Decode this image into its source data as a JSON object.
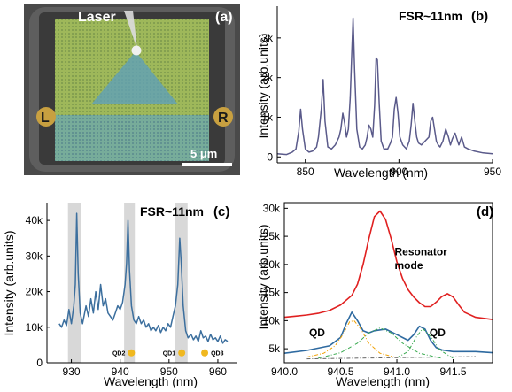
{
  "colors": {
    "spectrum": "#5a5a8a",
    "spectrum_c": "#3c6f9e",
    "resonator": "#e02020",
    "qd_fit": "#2e6aa0",
    "qd_orange": "#f0a000",
    "qd_green": "#3aaa50",
    "band": "#d8d8d8",
    "dot": "#f0b820"
  },
  "panel_a": {
    "label": "(a)",
    "laser_label": "Laser",
    "contact_left": "L",
    "contact_right": "R",
    "scalebar_label": "5 μm"
  },
  "chart_data": [
    {
      "panel": "b",
      "type": "line",
      "annotation": "FSR~11nm",
      "label": "(b)",
      "xlabel": "Wavelength (nm)",
      "ylabel": "Intensity (arb.units)",
      "xlim": [
        835,
        950
      ],
      "ylim": [
        -150,
        3800
      ],
      "xticks": [
        850,
        900,
        950
      ],
      "yticks": [
        0,
        1000,
        2000,
        3000
      ],
      "yticklabels": [
        "0",
        "1k",
        "2k",
        "3k"
      ],
      "series": [
        {
          "x": [
            835,
            840,
            843,
            845,
            846.5,
            847.5,
            848.5,
            850,
            852,
            854,
            856,
            857,
            858.5,
            859.5,
            860.5,
            862,
            864,
            866,
            868,
            869,
            870,
            871,
            872,
            873,
            874,
            874.8,
            875.5,
            876.3,
            877.5,
            879,
            880.5,
            882,
            883,
            884,
            885,
            886,
            887,
            887.8,
            888.5,
            889.5,
            890.5,
            892,
            894,
            895.5,
            896.5,
            897.5,
            898.5,
            899.5,
            900.5,
            902,
            904,
            905.5,
            906.5,
            907.5,
            908.5,
            909.5,
            910.5,
            912,
            914,
            916,
            917,
            918,
            919,
            920,
            921,
            922,
            923.5,
            925,
            926.5,
            927.5,
            928.5,
            930,
            932,
            933.5,
            935,
            937,
            940,
            945,
            950
          ],
          "y": [
            80,
            60,
            120,
            200,
            650,
            1200,
            700,
            200,
            120,
            150,
            250,
            500,
            1200,
            1950,
            900,
            250,
            200,
            300,
            500,
            700,
            1100,
            850,
            500,
            700,
            1500,
            2600,
            3500,
            2200,
            700,
            250,
            200,
            300,
            500,
            800,
            700,
            500,
            1300,
            2500,
            2450,
            1300,
            400,
            200,
            200,
            350,
            500,
            1200,
            1500,
            1100,
            500,
            300,
            200,
            400,
            800,
            1350,
            900,
            500,
            350,
            300,
            400,
            500,
            900,
            1000,
            700,
            400,
            300,
            250,
            400,
            700,
            500,
            300,
            450,
            600,
            300,
            500,
            250,
            200,
            150,
            100,
            80
          ]
        }
      ]
    },
    {
      "panel": "c",
      "type": "line",
      "annotation": "FSR~11nm",
      "label": "(c)",
      "xlabel": "Wavelength (nm)",
      "ylabel": "Intensity (arb.units)",
      "xlim": [
        925,
        964
      ],
      "ylim": [
        0,
        45000
      ],
      "xticks": [
        930,
        940,
        950,
        960
      ],
      "yticks": [
        0,
        10000,
        20000,
        30000,
        40000
      ],
      "yticklabels": [
        "0",
        "10k",
        "20k",
        "30k",
        "40k"
      ],
      "bands": [
        [
          929.3,
          932
        ],
        [
          940.8,
          943
        ],
        [
          951.3,
          953.8
        ]
      ],
      "qd_dots": [
        {
          "label": "QD2",
          "x": 942.3
        },
        {
          "label": "QD1",
          "x": 952.6
        },
        {
          "label": "QD3",
          "x": 957.3
        }
      ],
      "series": [
        {
          "x": [
            927.5,
            928,
            928.5,
            929,
            929.5,
            930,
            930.5,
            930.8,
            931.1,
            931.4,
            931.8,
            932.3,
            933,
            933.5,
            934,
            934.5,
            935,
            935.5,
            936,
            936.5,
            937,
            937.5,
            938,
            938.5,
            939,
            939.5,
            940,
            940.5,
            941,
            941.3,
            941.6,
            941.9,
            942.3,
            942.8,
            943.3,
            943.8,
            944.3,
            944.8,
            945.3,
            945.8,
            946.3,
            946.8,
            947.3,
            947.8,
            948.3,
            948.8,
            949.3,
            949.8,
            950.3,
            950.8,
            951.3,
            951.8,
            952.2,
            952.5,
            952.9,
            953.4,
            953.9,
            954.5,
            955,
            955.5,
            956,
            956.5,
            957,
            957.5,
            958,
            958.5,
            959,
            959.5,
            960,
            960.5,
            961,
            961.5,
            962
          ],
          "y": [
            11000,
            10000,
            12000,
            10500,
            15000,
            11000,
            16000,
            22000,
            42000,
            25000,
            14000,
            11000,
            16000,
            13000,
            18000,
            14000,
            20000,
            15000,
            22000,
            16000,
            18000,
            14000,
            13000,
            12000,
            14000,
            16000,
            15000,
            17000,
            22000,
            28000,
            40000,
            26000,
            16000,
            12000,
            11000,
            13000,
            11000,
            12000,
            10000,
            11000,
            9000,
            10000,
            9000,
            10500,
            8500,
            10000,
            9000,
            11000,
            10000,
            13000,
            16000,
            22000,
            35000,
            28000,
            16000,
            9000,
            7000,
            8000,
            6500,
            7500,
            6000,
            9000,
            7000,
            7500,
            6000,
            8000,
            6500,
            7000,
            6000,
            7500,
            5500,
            6500,
            6000
          ]
        }
      ]
    },
    {
      "panel": "d",
      "type": "line",
      "label": "(d)",
      "xlabel": "Wavelength (nm)",
      "ylabel": "Intensity (arb.units)",
      "xlim": [
        940.0,
        941.85
      ],
      "ylim": [
        2500,
        31000
      ],
      "xticks": [
        940.0,
        940.5,
        941.0,
        941.5
      ],
      "xticklabels": [
        "940.0",
        "940.5",
        "941.0",
        "941.5"
      ],
      "yticks": [
        5000,
        10000,
        15000,
        20000,
        25000,
        30000
      ],
      "yticklabels": [
        "5k",
        "10k",
        "15k",
        "20k",
        "25k",
        "30k"
      ],
      "annotations": [
        {
          "text": "Resonator",
          "x": 940.98,
          "y": 21600
        },
        {
          "text": "mode",
          "x": 940.98,
          "y": 19200
        },
        {
          "text": "QD",
          "x": 940.22,
          "y": 7200
        },
        {
          "text": "QD",
          "x": 941.29,
          "y": 7200
        }
      ],
      "series": [
        {
          "role": "resonator",
          "x": [
            940.0,
            940.1,
            940.2,
            940.3,
            940.4,
            940.5,
            940.6,
            940.65,
            940.7,
            940.75,
            940.8,
            940.85,
            940.9,
            940.95,
            941.0,
            941.05,
            941.1,
            941.15,
            941.2,
            941.25,
            941.3,
            941.35,
            941.4,
            941.45,
            941.5,
            941.55,
            941.6,
            941.7,
            941.85
          ],
          "y": [
            10600,
            10800,
            11000,
            11300,
            11800,
            12800,
            14500,
            16500,
            20000,
            24500,
            28500,
            29500,
            28000,
            24500,
            20500,
            17500,
            15500,
            14200,
            13200,
            12500,
            12500,
            13300,
            14300,
            14800,
            14200,
            12800,
            11500,
            10600,
            10200
          ]
        },
        {
          "role": "qd-fit",
          "x": [
            940.0,
            940.2,
            940.4,
            940.5,
            940.55,
            940.6,
            940.65,
            940.7,
            940.75,
            940.8,
            940.9,
            941.0,
            941.1,
            941.15,
            941.2,
            941.25,
            941.3,
            941.35,
            941.4,
            941.5,
            941.6,
            941.7,
            941.85
          ],
          "y": [
            4200,
            4700,
            5500,
            7000,
            9500,
            11500,
            10000,
            8200,
            7800,
            8200,
            8500,
            7500,
            6500,
            7500,
            9000,
            8500,
            6500,
            5200,
            4800,
            4500,
            4500,
            4500,
            4300
          ]
        },
        {
          "role": "qd-orange",
          "x": [
            940.2,
            940.35,
            940.45,
            940.52,
            940.58,
            940.62,
            940.68,
            940.75,
            940.85,
            941.0
          ],
          "y": [
            3500,
            4200,
            5500,
            7500,
            9800,
            10000,
            8500,
            6000,
            4200,
            3400
          ]
        },
        {
          "role": "qd-green",
          "x": [
            940.3,
            940.5,
            940.65,
            940.75,
            940.85,
            940.95,
            941.05,
            941.2,
            941.4
          ],
          "y": [
            3300,
            4300,
            6000,
            7800,
            8700,
            7800,
            6000,
            4200,
            3300
          ]
        },
        {
          "role": "qd-green-2",
          "x": [
            941.0,
            941.1,
            941.17,
            941.23,
            941.3,
            941.38,
            941.5
          ],
          "y": [
            3400,
            4500,
            7000,
            8600,
            7200,
            4800,
            3300
          ]
        },
        {
          "role": "baseline",
          "x": [
            940.2,
            941.7
          ],
          "y": [
            3200,
            3600
          ]
        }
      ]
    }
  ]
}
